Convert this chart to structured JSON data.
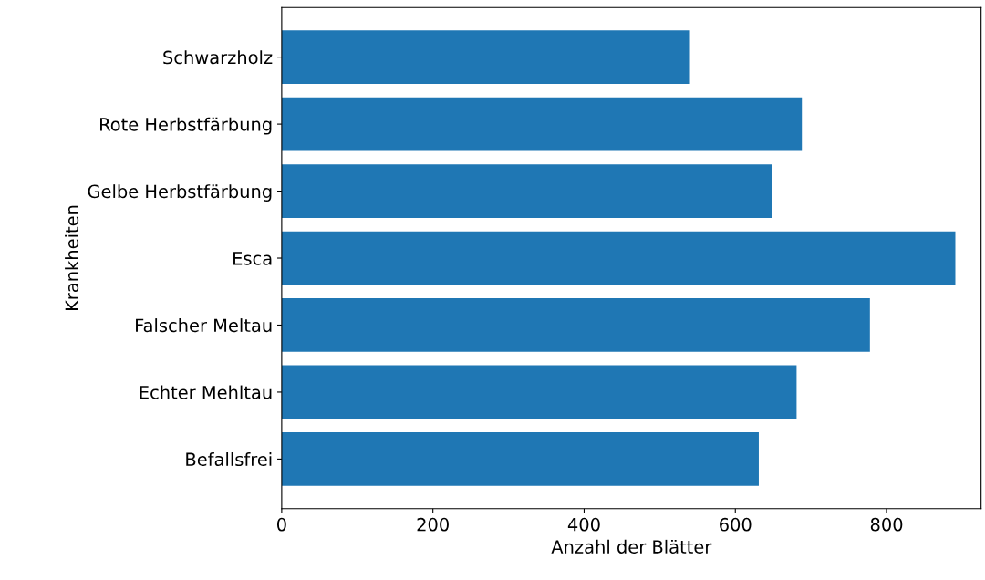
{
  "chart_data": {
    "type": "bar",
    "orientation": "horizontal",
    "xlabel": "Anzahl der Blätter",
    "ylabel": "Krankheiten",
    "categories": [
      "Schwarzholz",
      "Rote Herbstfärbung",
      "Gelbe Herbstfärbung",
      "Esca",
      "Falscher Meltau",
      "Echter Mehltau",
      "Befallsfrei"
    ],
    "values": [
      540,
      688,
      648,
      891,
      778,
      681,
      631
    ],
    "color": "#1f77b4",
    "xlim": [
      0,
      925
    ],
    "xticks": [
      0,
      200,
      400,
      600,
      800
    ],
    "grid": false
  }
}
